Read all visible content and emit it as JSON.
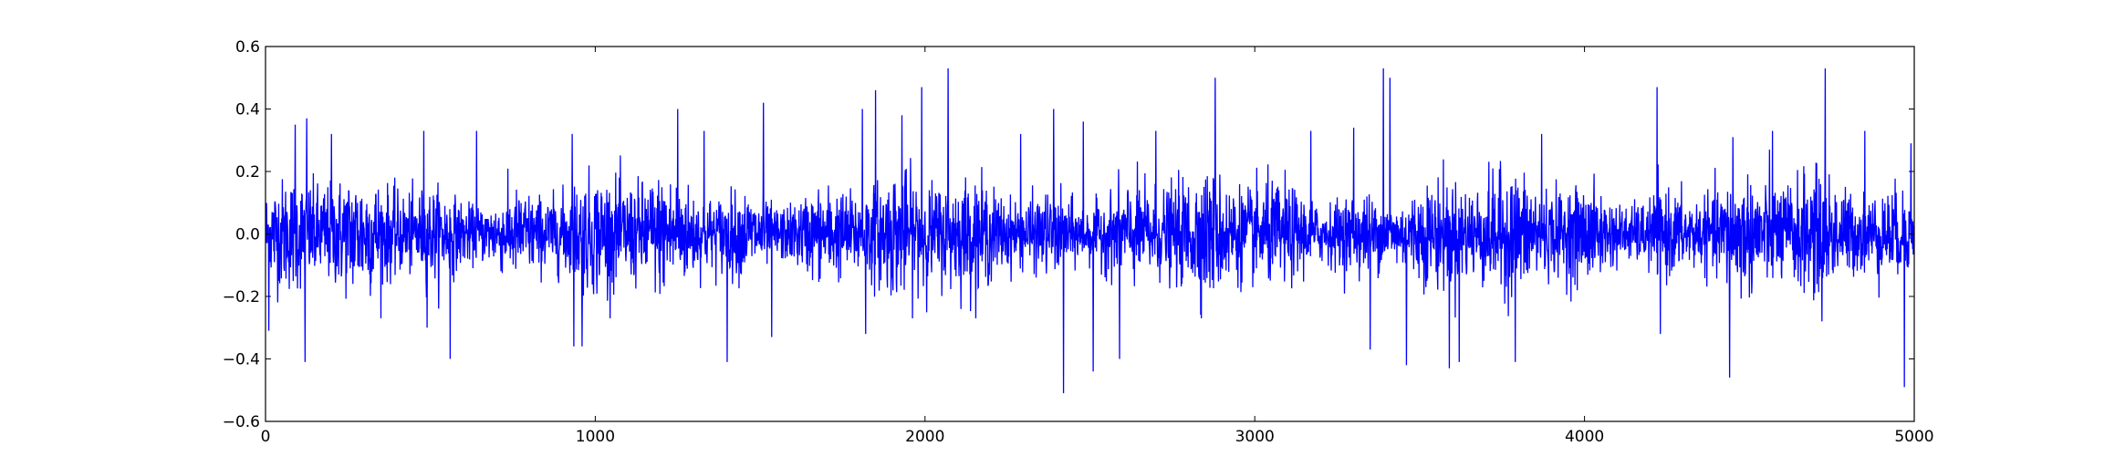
{
  "chart_data": {
    "type": "line",
    "title": "",
    "xlabel": "",
    "ylabel": "",
    "xlim": [
      0,
      5000
    ],
    "ylim": [
      -0.6,
      0.6
    ],
    "grid": false,
    "x_ticks": [
      0,
      1000,
      2000,
      3000,
      4000,
      5000
    ],
    "y_ticks": [
      -0.6,
      -0.4,
      -0.2,
      0.0,
      0.2,
      0.4,
      0.6
    ],
    "x_tick_labels": [
      "0",
      "1000",
      "2000",
      "3000",
      "4000",
      "5000"
    ],
    "y_tick_labels": [
      "−0.6",
      "−0.4",
      "−0.2",
      "0.0",
      "0.2",
      "0.4",
      "0.6"
    ],
    "series": [
      {
        "color": "#0000ff",
        "noise_level": 0.07,
        "n_points": 5000,
        "peaks": [
          {
            "x": 10,
            "y": -0.31
          },
          {
            "x": 90,
            "y": 0.35
          },
          {
            "x": 120,
            "y": -0.41
          },
          {
            "x": 125,
            "y": 0.37
          },
          {
            "x": 200,
            "y": 0.32
          },
          {
            "x": 480,
            "y": 0.33
          },
          {
            "x": 490,
            "y": -0.3
          },
          {
            "x": 560,
            "y": -0.4
          },
          {
            "x": 640,
            "y": 0.33
          },
          {
            "x": 930,
            "y": 0.32
          },
          {
            "x": 935,
            "y": -0.36
          },
          {
            "x": 960,
            "y": -0.36
          },
          {
            "x": 1250,
            "y": 0.4
          },
          {
            "x": 1330,
            "y": 0.33
          },
          {
            "x": 1400,
            "y": -0.41
          },
          {
            "x": 1510,
            "y": 0.42
          },
          {
            "x": 1535,
            "y": -0.33
          },
          {
            "x": 1810,
            "y": 0.4
          },
          {
            "x": 1820,
            "y": -0.32
          },
          {
            "x": 1850,
            "y": 0.46
          },
          {
            "x": 1930,
            "y": 0.38
          },
          {
            "x": 1990,
            "y": 0.47
          },
          {
            "x": 2070,
            "y": 0.53
          },
          {
            "x": 2290,
            "y": 0.32
          },
          {
            "x": 2390,
            "y": 0.4
          },
          {
            "x": 2420,
            "y": -0.51
          },
          {
            "x": 2480,
            "y": 0.36
          },
          {
            "x": 2510,
            "y": -0.44
          },
          {
            "x": 2590,
            "y": -0.4
          },
          {
            "x": 2700,
            "y": 0.33
          },
          {
            "x": 2880,
            "y": 0.5
          },
          {
            "x": 3170,
            "y": 0.33
          },
          {
            "x": 3300,
            "y": 0.34
          },
          {
            "x": 3350,
            "y": -0.37
          },
          {
            "x": 3390,
            "y": 0.53
          },
          {
            "x": 3410,
            "y": 0.5
          },
          {
            "x": 3460,
            "y": -0.42
          },
          {
            "x": 3590,
            "y": -0.43
          },
          {
            "x": 3620,
            "y": -0.41
          },
          {
            "x": 3790,
            "y": -0.41
          },
          {
            "x": 3870,
            "y": 0.32
          },
          {
            "x": 4220,
            "y": 0.47
          },
          {
            "x": 4230,
            "y": -0.32
          },
          {
            "x": 4440,
            "y": -0.46
          },
          {
            "x": 4450,
            "y": 0.31
          },
          {
            "x": 4570,
            "y": 0.33
          },
          {
            "x": 4730,
            "y": 0.53
          },
          {
            "x": 4720,
            "y": -0.28
          },
          {
            "x": 4850,
            "y": 0.33
          },
          {
            "x": 4970,
            "y": -0.49
          },
          {
            "x": 4990,
            "y": 0.29
          }
        ]
      }
    ]
  }
}
